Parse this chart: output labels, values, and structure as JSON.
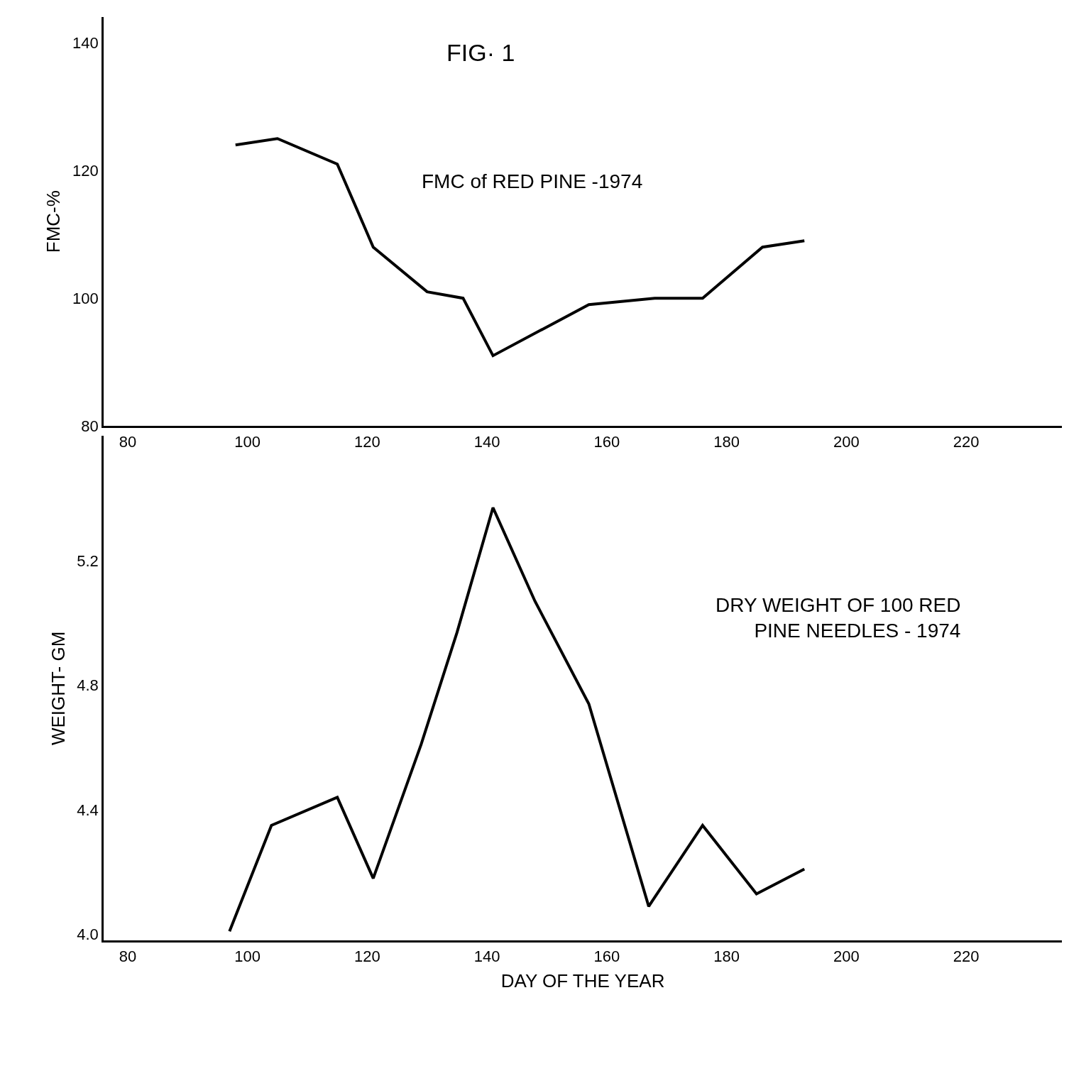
{
  "chart_data": [
    {
      "type": "line",
      "title": "FIG· 1",
      "ylabel": "FMC-%",
      "annotations": [
        "FMC of RED PINE -1974"
      ],
      "series": [
        {
          "color": "#000000",
          "x": [
            98,
            105,
            115,
            121,
            130,
            136,
            141,
            157,
            168,
            176,
            186,
            193
          ],
          "values": [
            124,
            125,
            121,
            108,
            101,
            100,
            91,
            99,
            100,
            100,
            108,
            109
          ]
        }
      ],
      "xlim": [
        76,
        236
      ],
      "xticks": [
        80,
        100,
        120,
        140,
        160,
        180,
        200,
        220
      ],
      "ylim": [
        80,
        144
      ],
      "yticks": [
        80,
        100,
        120,
        140
      ],
      "grid": false,
      "marker": "none",
      "line_style": "solid"
    },
    {
      "type": "line",
      "xlabel": "DAY OF THE YEAR",
      "ylabel": "WEIGHT- GM",
      "annotations": [
        "DRY WEIGHT OF 100 RED\nPINE NEEDLES - 1974"
      ],
      "series": [
        {
          "color": "#000000",
          "x": [
            97,
            104,
            115,
            121,
            129,
            135,
            141,
            148,
            157,
            167,
            176,
            185,
            193
          ],
          "values": [
            4.01,
            4.35,
            4.44,
            4.18,
            4.61,
            4.97,
            5.37,
            5.07,
            4.74,
            4.09,
            4.35,
            4.13,
            4.21
          ]
        }
      ],
      "xlim": [
        76,
        236
      ],
      "xticks": [
        80,
        100,
        120,
        140,
        160,
        180,
        200,
        220
      ],
      "ylim": [
        3.98,
        5.6
      ],
      "yticks": [
        {
          "value": 4.0,
          "label": "4.0"
        },
        4.4,
        4.8,
        5.2
      ],
      "grid": false,
      "marker": "none",
      "line_style": "solid"
    }
  ]
}
